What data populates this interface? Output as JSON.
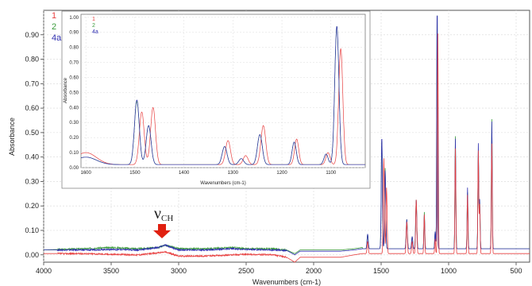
{
  "chart_data": {
    "type": "line",
    "xlabel": "Wavenumbers (cm-1)",
    "ylabel": "Absorbance",
    "xlim": [
      4000,
      400
    ],
    "ylim": [
      -0.03,
      1.0
    ],
    "xticks": [
      4000,
      3500,
      3000,
      2500,
      2000,
      1500,
      1000,
      500
    ],
    "yticks": [
      0.0,
      0.1,
      0.2,
      0.3,
      0.4,
      0.5,
      0.6,
      0.7,
      0.8,
      0.9
    ],
    "legend_position": "top-left",
    "series": [
      {
        "name": "1",
        "color": "#e84040"
      },
      {
        "name": "2",
        "color": "#3a9a3a"
      },
      {
        "name": "4a",
        "color": "#3030b0"
      }
    ],
    "annotation": {
      "symbol": "ν",
      "subscript": "CH",
      "x": 3100,
      "color": "#e02010"
    },
    "baseline": {
      "1": [
        [
          4000,
          0.005
        ],
        [
          3700,
          0.005
        ],
        [
          3500,
          0.002
        ],
        [
          3300,
          0.0
        ],
        [
          3150,
          0.008
        ],
        [
          3100,
          0.012
        ],
        [
          3000,
          -0.005
        ],
        [
          2800,
          -0.005
        ],
        [
          2600,
          0.0
        ],
        [
          2500,
          0.002
        ],
        [
          2300,
          0.0
        ],
        [
          2200,
          -0.01
        ],
        [
          2140,
          -0.03
        ],
        [
          2100,
          -0.01
        ],
        [
          2000,
          -0.01
        ],
        [
          1800,
          -0.01
        ],
        [
          1700,
          0.0
        ],
        [
          1640,
          0.005
        ]
      ],
      "2": [
        [
          4000,
          0.02
        ],
        [
          3700,
          0.025
        ],
        [
          3500,
          0.03
        ],
        [
          3300,
          0.025
        ],
        [
          3150,
          0.03
        ],
        [
          3100,
          0.04
        ],
        [
          3000,
          0.025
        ],
        [
          2800,
          0.025
        ],
        [
          2600,
          0.03
        ],
        [
          2500,
          0.025
        ],
        [
          2300,
          0.025
        ],
        [
          2200,
          0.02
        ],
        [
          2140,
          0.005
        ],
        [
          2100,
          0.02
        ],
        [
          2000,
          0.02
        ],
        [
          1800,
          0.02
        ],
        [
          1700,
          0.025
        ],
        [
          1640,
          0.03
        ]
      ],
      "4a": [
        [
          4000,
          0.02
        ],
        [
          3700,
          0.02
        ],
        [
          3500,
          0.022
        ],
        [
          3300,
          0.02
        ],
        [
          3150,
          0.03
        ],
        [
          3100,
          0.04
        ],
        [
          3000,
          0.02
        ],
        [
          2800,
          0.02
        ],
        [
          2600,
          0.025
        ],
        [
          2500,
          0.022
        ],
        [
          2300,
          0.02
        ],
        [
          2200,
          0.018
        ],
        [
          2140,
          0.0
        ],
        [
          2100,
          0.015
        ],
        [
          2000,
          0.015
        ],
        [
          1800,
          0.015
        ],
        [
          1700,
          0.02
        ],
        [
          1640,
          0.025
        ]
      ]
    },
    "peaks": {
      "1": [
        [
          1480,
          0.39
        ],
        [
          1460,
          0.27
        ],
        [
          1600,
          0.05
        ],
        [
          1310,
          0.13
        ],
        [
          1270,
          0.05
        ],
        [
          1240,
          0.22
        ],
        [
          1180,
          0.16
        ],
        [
          1100,
          0.06
        ],
        [
          1080,
          0.9
        ],
        [
          950,
          0.43
        ],
        [
          860,
          0.24
        ],
        [
          780,
          0.42
        ],
        [
          680,
          0.45
        ],
        [
          770,
          0.2
        ]
      ],
      "2": [
        [
          1495,
          0.45
        ],
        [
          1470,
          0.33
        ],
        [
          1600,
          0.06
        ],
        [
          1310,
          0.12
        ],
        [
          1270,
          0.05
        ],
        [
          1240,
          0.2
        ],
        [
          1180,
          0.15
        ],
        [
          1100,
          0.07
        ],
        [
          1085,
          1.0
        ],
        [
          950,
          0.46
        ],
        [
          860,
          0.23
        ],
        [
          780,
          0.4
        ],
        [
          680,
          0.53
        ],
        [
          770,
          0.2
        ]
      ],
      "4a": [
        [
          1495,
          0.46
        ],
        [
          1470,
          0.32
        ],
        [
          1600,
          0.06
        ],
        [
          1310,
          0.12
        ],
        [
          1270,
          0.05
        ],
        [
          1240,
          0.2
        ],
        [
          1180,
          0.14
        ],
        [
          1100,
          0.07
        ],
        [
          1085,
          1.0
        ],
        [
          950,
          0.45
        ],
        [
          860,
          0.25
        ],
        [
          780,
          0.43
        ],
        [
          680,
          0.52
        ],
        [
          770,
          0.2
        ]
      ]
    },
    "inset": {
      "xlabel": "Wavenumbers (cm-1)",
      "ylabel": "Absorbance",
      "xlim": [
        1610,
        1030
      ],
      "ylim": [
        0.0,
        1.02
      ],
      "xticks": [
        1600,
        1500,
        1400,
        1300,
        1200,
        1100
      ],
      "yticks": [
        0.0,
        0.1,
        0.2,
        0.3,
        0.4,
        0.5,
        0.6,
        0.7,
        0.8,
        0.9,
        1.0
      ],
      "legend": [
        "1",
        "2",
        "4a"
      ],
      "peaks": {
        "1": [
          [
            1600,
            0.08
          ],
          [
            1486,
            0.35
          ],
          [
            1463,
            0.38
          ],
          [
            1310,
            0.16
          ],
          [
            1274,
            0.06
          ],
          [
            1238,
            0.26
          ],
          [
            1170,
            0.17
          ],
          [
            1106,
            0.08
          ],
          [
            1080,
            0.77
          ]
        ],
        "2": [
          [
            1600,
            0.05
          ],
          [
            1496,
            0.42
          ],
          [
            1472,
            0.26
          ],
          [
            1317,
            0.12
          ],
          [
            1283,
            0.04
          ],
          [
            1245,
            0.2
          ],
          [
            1175,
            0.15
          ],
          [
            1110,
            0.07
          ],
          [
            1088,
            0.92
          ]
        ],
        "4a": [
          [
            1600,
            0.05
          ],
          [
            1496,
            0.43
          ],
          [
            1472,
            0.26
          ],
          [
            1317,
            0.12
          ],
          [
            1283,
            0.04
          ],
          [
            1245,
            0.2
          ],
          [
            1175,
            0.15
          ],
          [
            1110,
            0.07
          ],
          [
            1088,
            0.92
          ]
        ]
      }
    }
  }
}
